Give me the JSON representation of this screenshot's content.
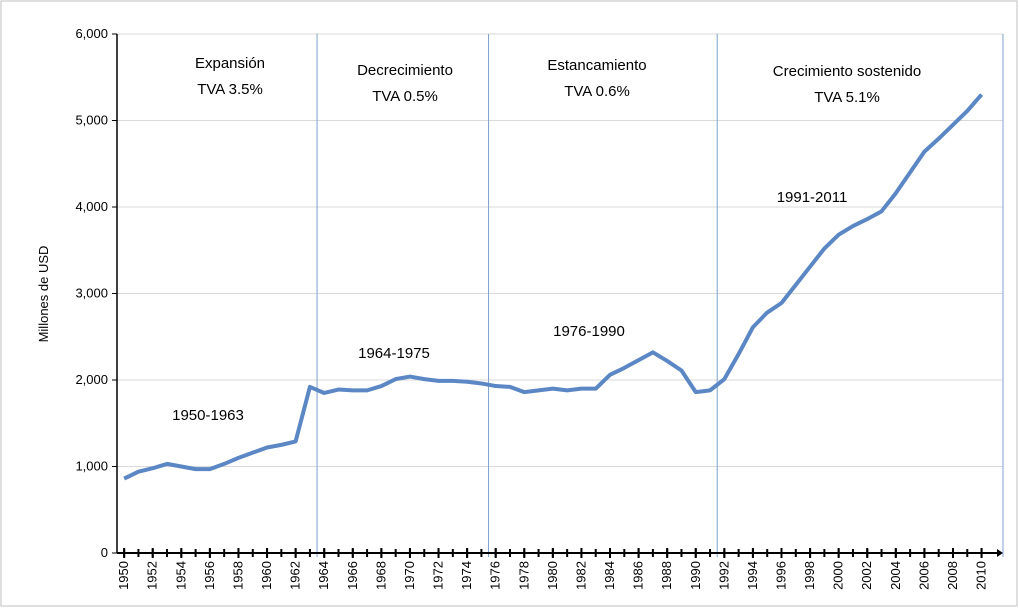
{
  "chart_data": {
    "type": "line",
    "y_label": "Millones de USD",
    "x": [
      1950,
      1951,
      1952,
      1953,
      1954,
      1955,
      1956,
      1957,
      1958,
      1959,
      1960,
      1961,
      1962,
      1963,
      1964,
      1965,
      1966,
      1967,
      1968,
      1969,
      1970,
      1971,
      1972,
      1973,
      1974,
      1975,
      1976,
      1977,
      1978,
      1979,
      1980,
      1981,
      1982,
      1983,
      1984,
      1985,
      1986,
      1987,
      1988,
      1989,
      1990,
      1991,
      1992,
      1993,
      1994,
      1995,
      1996,
      1997,
      1998,
      1999,
      2000,
      2001,
      2002,
      2003,
      2004,
      2005,
      2006,
      2007,
      2008,
      2009,
      2010
    ],
    "series": [
      {
        "color": "#5b87c5",
        "values": [
          860,
          940,
          980,
          1030,
          1000,
          970,
          970,
          1030,
          1100,
          1160,
          1220,
          1250,
          1290,
          1920,
          1850,
          1890,
          1880,
          1880,
          1930,
          2010,
          2040,
          2010,
          1990,
          1990,
          1980,
          1960,
          1930,
          1920,
          1860,
          1880,
          1900,
          1880,
          1900,
          1900,
          2060,
          2140,
          2230,
          2320,
          2220,
          2110,
          1860,
          1880,
          2010,
          2300,
          2610,
          2780,
          2890,
          3100,
          3310,
          3520,
          3680,
          3780,
          3860,
          3950,
          4160,
          4400,
          4640,
          4790,
          4950,
          5110,
          5300
        ]
      }
    ],
    "xlim": [
      1949.5,
      2011.5
    ],
    "xticks": [
      1950,
      1952,
      1954,
      1956,
      1958,
      1960,
      1962,
      1964,
      1966,
      1968,
      1970,
      1972,
      1974,
      1976,
      1978,
      1980,
      1982,
      1984,
      1986,
      1988,
      1990,
      1992,
      1994,
      1996,
      1998,
      2000,
      2002,
      2004,
      2006,
      2008,
      2010
    ],
    "ylim": [
      0,
      6000
    ],
    "yticks": [
      0,
      {
        "value": 1000,
        "label": "1,000"
      },
      {
        "value": 2000,
        "label": "2,000"
      },
      {
        "value": 3000,
        "label": "3,000"
      },
      {
        "value": 4000,
        "label": "4,000"
      },
      {
        "value": 5000,
        "label": "5,000"
      },
      {
        "value": 6000,
        "label": "6,000"
      }
    ],
    "grid": true,
    "dividers": [
      1963.5,
      1975.5,
      1991.5,
      2011.5
    ],
    "annotations": [
      {
        "lines": [
          "Expansión",
          "TVA 3.5%"
        ]
      },
      {
        "lines": [
          "Decrecimiento",
          "TVA 0.5%"
        ]
      },
      {
        "lines": [
          "Estancamiento",
          "TVA 0.6%"
        ]
      },
      {
        "lines": [
          "Crecimiento sostenido",
          "TVA 5.1%"
        ]
      },
      {
        "lines": [
          "1950-1963"
        ]
      },
      {
        "lines": [
          "1964-1975"
        ]
      },
      {
        "lines": [
          "1976-1990"
        ]
      },
      {
        "lines": [
          "1991-2011"
        ]
      }
    ]
  }
}
